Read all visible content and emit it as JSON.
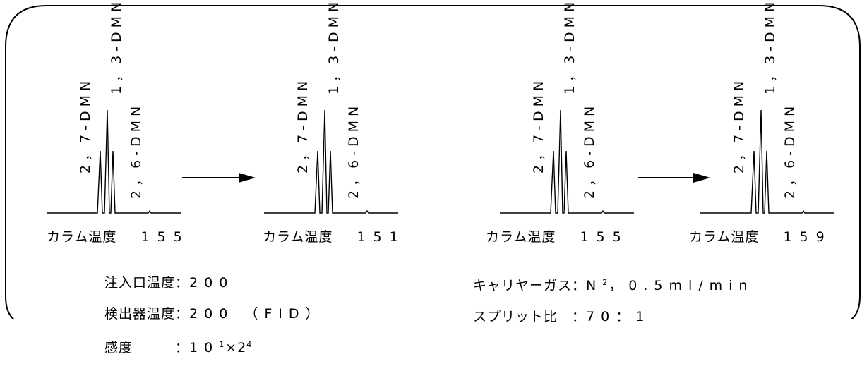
{
  "peaks": {
    "p27": "2，7-DMN",
    "p13": "1，3-DMN",
    "p26": "2，6-DMN"
  },
  "panels": [
    {
      "caption_label": "カラム温度",
      "caption_temp": "155"
    },
    {
      "caption_label": "カラム温度",
      "caption_temp": "151"
    },
    {
      "caption_label": "カラム温度",
      "caption_temp": "155"
    },
    {
      "caption_label": "カラム温度",
      "caption_temp": "159"
    }
  ],
  "conditions_left": {
    "injector_label": "注入口温度：",
    "injector_value": "200",
    "detector_label": "検出器温度：",
    "detector_value": "200 （FID）",
    "sensitivity_label": "感度　　　：",
    "sensitivity_base": "10",
    "sensitivity_exp1": "1",
    "sensitivity_mult": "×2",
    "sensitivity_exp2": "4"
  },
  "conditions_right": {
    "carrier_label": "キャリヤーガス：",
    "carrier_gas": "N",
    "carrier_sub": "2",
    "carrier_rest": "，0.5ml/min",
    "split_label": "スプリット比　：",
    "split_value": "70：1"
  }
}
